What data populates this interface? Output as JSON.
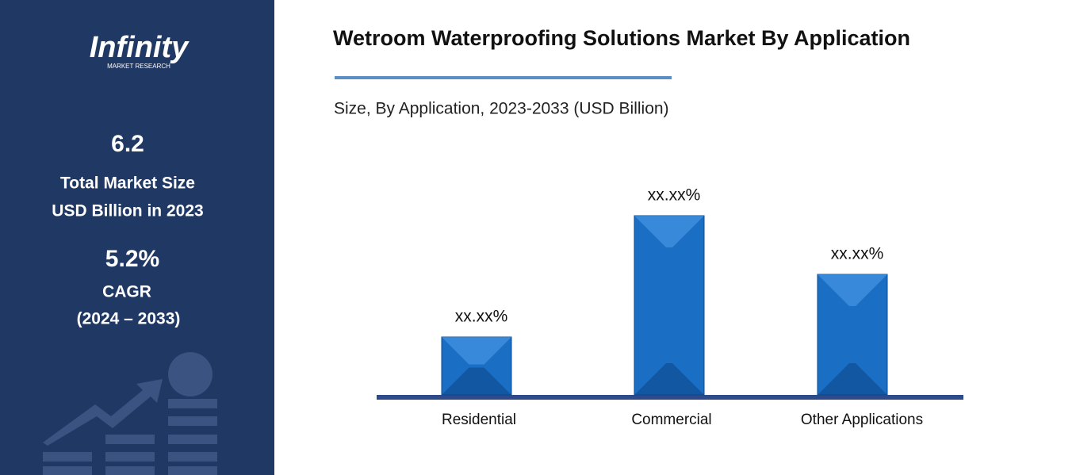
{
  "sidebar": {
    "logo": "Infinity",
    "logo_sub": "MARKET RESEARCH",
    "market_size": "6.2",
    "market_size_label_1": "Total Market Size",
    "market_size_label_2": "USD Billion in 2023",
    "cagr": "5.2%",
    "cagr_label": "CAGR",
    "cagr_period": "(2024 – 2033)"
  },
  "chart_data": {
    "type": "bar",
    "title": "Wetroom Waterproofing Solutions Market By Application",
    "subtitle": "Size, By Application, 2023-2033 (USD Billion)",
    "categories": [
      "Residential",
      "Commercial",
      "Other Applications"
    ],
    "values": [
      7.3,
      22.6,
      15.2
    ],
    "value_labels": [
      "xx.xx%",
      "xx.xx%",
      "xx.xx%"
    ],
    "color": "#1a6fc4",
    "ylim": [
      0,
      25
    ]
  }
}
